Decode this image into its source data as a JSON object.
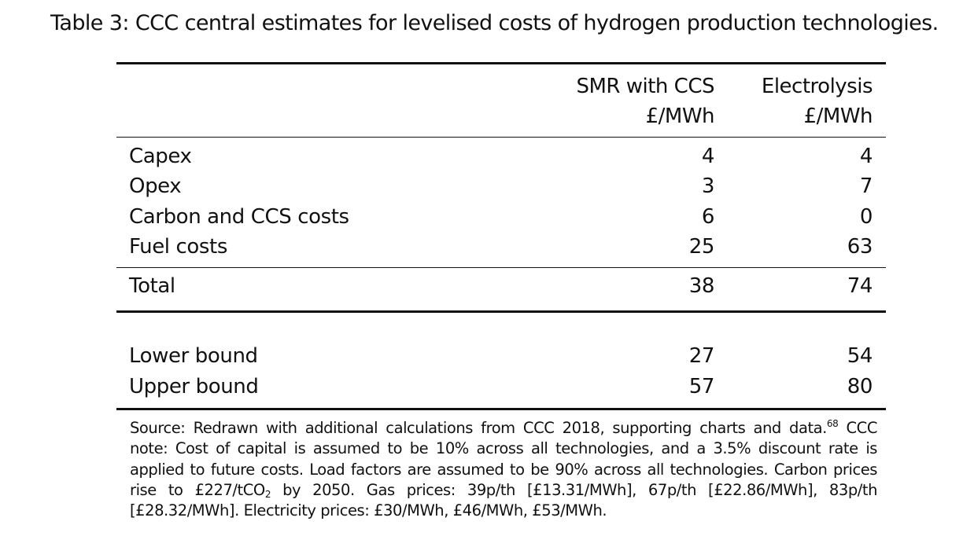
{
  "caption": "Table 3: CCC central estimates for levelised costs of hydrogen production technologies.",
  "table": {
    "columns": [
      {
        "name": "SMR with CCS",
        "unit": "£/MWh"
      },
      {
        "name": "Electrolysis",
        "unit": "£/MWh"
      }
    ],
    "rows": [
      {
        "label": "Capex",
        "smr": "4",
        "electrolysis": "4"
      },
      {
        "label": "Opex",
        "smr": "3",
        "electrolysis": "7"
      },
      {
        "label": "Carbon and CCS costs",
        "smr": "6",
        "electrolysis": "0"
      },
      {
        "label": "Fuel costs",
        "smr": "25",
        "electrolysis": "63"
      }
    ],
    "total": {
      "label": "Total",
      "smr": "38",
      "electrolysis": "74"
    },
    "bounds": [
      {
        "label": "Lower bound",
        "smr": "27",
        "electrolysis": "54"
      },
      {
        "label": "Upper bound",
        "smr": "57",
        "electrolysis": "80"
      }
    ]
  },
  "note": {
    "part1": "Source: Redrawn with additional calculations from CCC 2018, supporting charts and data.",
    "footnote_ref": "68",
    "part2": " CCC note: Cost of capital is assumed to be 10% across all technologies, and a 3.5% discount rate is applied to future costs.  Load factors are assumed to be 90% across all technologies.  Carbon prices rise to £227/tCO",
    "subscript": "2",
    "part3": " by 2050. Gas prices: 39p/th [£13.31/MWh], 67p/th [£22.86/MWh], 83p/th [£28.32/MWh]. Electricity prices: £30/MWh, £46/MWh, £53/MWh."
  }
}
